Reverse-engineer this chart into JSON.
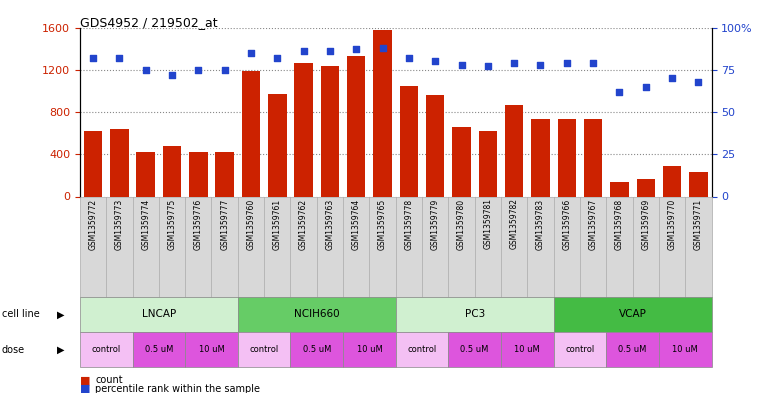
{
  "title": "GDS4952 / 219502_at",
  "samples": [
    "GSM1359772",
    "GSM1359773",
    "GSM1359774",
    "GSM1359775",
    "GSM1359776",
    "GSM1359777",
    "GSM1359760",
    "GSM1359761",
    "GSM1359762",
    "GSM1359763",
    "GSM1359764",
    "GSM1359765",
    "GSM1359778",
    "GSM1359779",
    "GSM1359780",
    "GSM1359781",
    "GSM1359782",
    "GSM1359783",
    "GSM1359766",
    "GSM1359767",
    "GSM1359768",
    "GSM1359769",
    "GSM1359770",
    "GSM1359771"
  ],
  "counts": [
    620,
    640,
    420,
    480,
    420,
    420,
    1190,
    970,
    1260,
    1240,
    1330,
    1580,
    1050,
    960,
    660,
    620,
    870,
    730,
    730,
    730,
    140,
    170,
    290,
    230
  ],
  "percentiles": [
    82,
    82,
    75,
    72,
    75,
    75,
    85,
    82,
    86,
    86,
    87,
    88,
    82,
    80,
    78,
    77,
    79,
    78,
    79,
    79,
    62,
    65,
    70,
    68
  ],
  "cell_lines": [
    {
      "name": "LNCAP",
      "start": 0,
      "end": 6,
      "color": "#d0f0d0"
    },
    {
      "name": "NCIH660",
      "start": 6,
      "end": 12,
      "color": "#66cc66"
    },
    {
      "name": "PC3",
      "start": 12,
      "end": 18,
      "color": "#d0f0d0"
    },
    {
      "name": "VCAP",
      "start": 18,
      "end": 24,
      "color": "#44bb44"
    }
  ],
  "dose_spans": [
    {
      "name": "control",
      "start": 0,
      "end": 2,
      "color": "#f4c0f4"
    },
    {
      "name": "0.5 uM",
      "start": 2,
      "end": 4,
      "color": "#dd55dd"
    },
    {
      "name": "10 uM",
      "start": 4,
      "end": 6,
      "color": "#dd55dd"
    },
    {
      "name": "control",
      "start": 6,
      "end": 8,
      "color": "#f4c0f4"
    },
    {
      "name": "0.5 uM",
      "start": 8,
      "end": 10,
      "color": "#dd55dd"
    },
    {
      "name": "10 uM",
      "start": 10,
      "end": 12,
      "color": "#dd55dd"
    },
    {
      "name": "control",
      "start": 12,
      "end": 14,
      "color": "#f4c0f4"
    },
    {
      "name": "0.5 uM",
      "start": 14,
      "end": 16,
      "color": "#dd55dd"
    },
    {
      "name": "10 uM",
      "start": 16,
      "end": 18,
      "color": "#dd55dd"
    },
    {
      "name": "control",
      "start": 18,
      "end": 20,
      "color": "#f4c0f4"
    },
    {
      "name": "0.5 uM",
      "start": 20,
      "end": 22,
      "color": "#dd55dd"
    },
    {
      "name": "10 uM",
      "start": 22,
      "end": 24,
      "color": "#dd55dd"
    }
  ],
  "bar_color": "#cc2200",
  "dot_color": "#2244cc",
  "ylim_left": [
    0,
    1600
  ],
  "ylim_right": [
    0,
    100
  ],
  "yticks_left": [
    0,
    400,
    800,
    1200,
    1600
  ],
  "yticks_right": [
    0,
    25,
    50,
    75,
    100
  ],
  "background_color": "#ffffff",
  "grid_color": "#888888",
  "xtick_bg": "#d8d8d8"
}
